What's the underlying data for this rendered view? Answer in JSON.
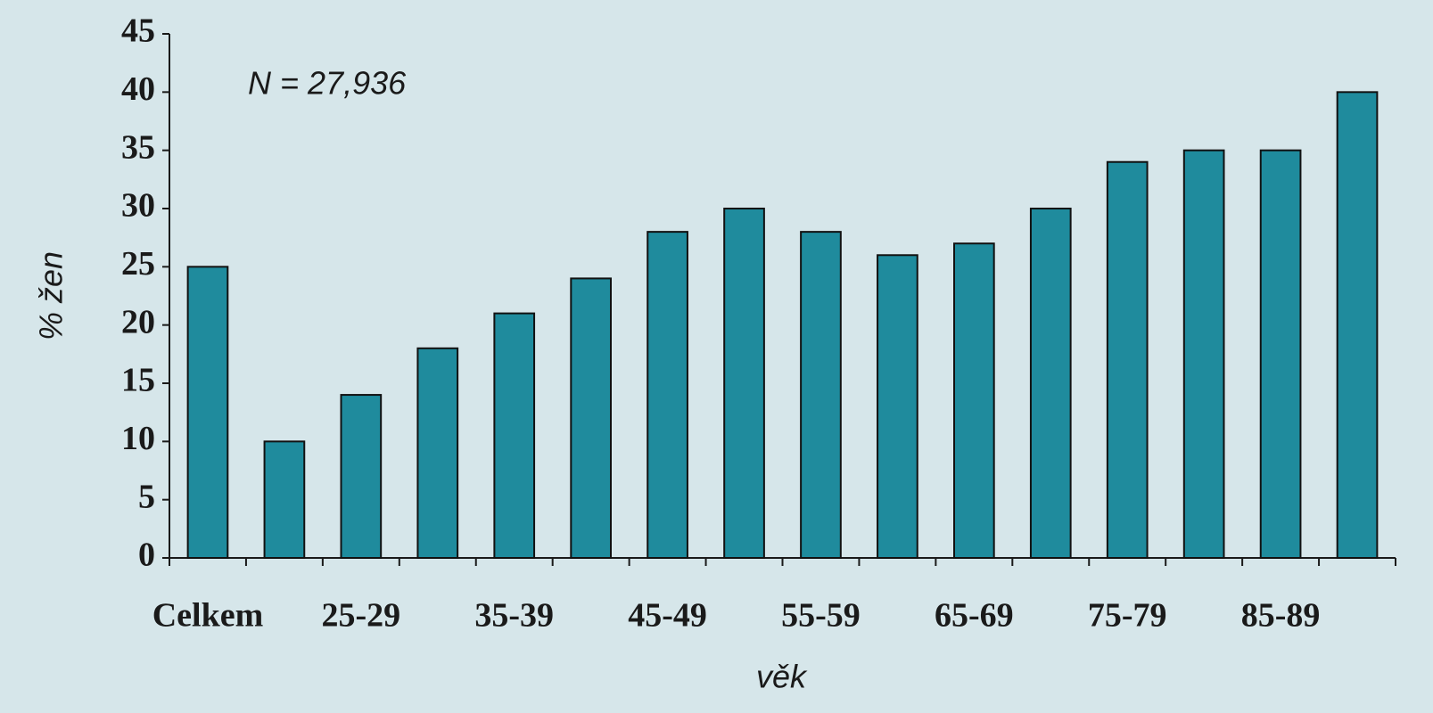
{
  "chart_data": {
    "type": "bar",
    "annotation": "N = 27,936",
    "x_label": "věk",
    "y_label": "% žen",
    "categories": [
      "Celkem",
      null,
      "25-29",
      null,
      "35-39",
      null,
      "45-49",
      null,
      "55-59",
      null,
      "65-69",
      null,
      "75-79",
      null,
      "85-89",
      null
    ],
    "values": [
      25,
      10,
      14,
      18,
      21,
      24,
      28,
      30,
      28,
      26,
      27,
      30,
      34,
      35,
      35,
      40
    ],
    "color": "#1f8b9d",
    "ylim": [
      0,
      45
    ],
    "yticks": [
      0,
      5,
      10,
      15,
      20,
      25,
      30,
      35,
      40,
      45
    ],
    "grid": false
  }
}
